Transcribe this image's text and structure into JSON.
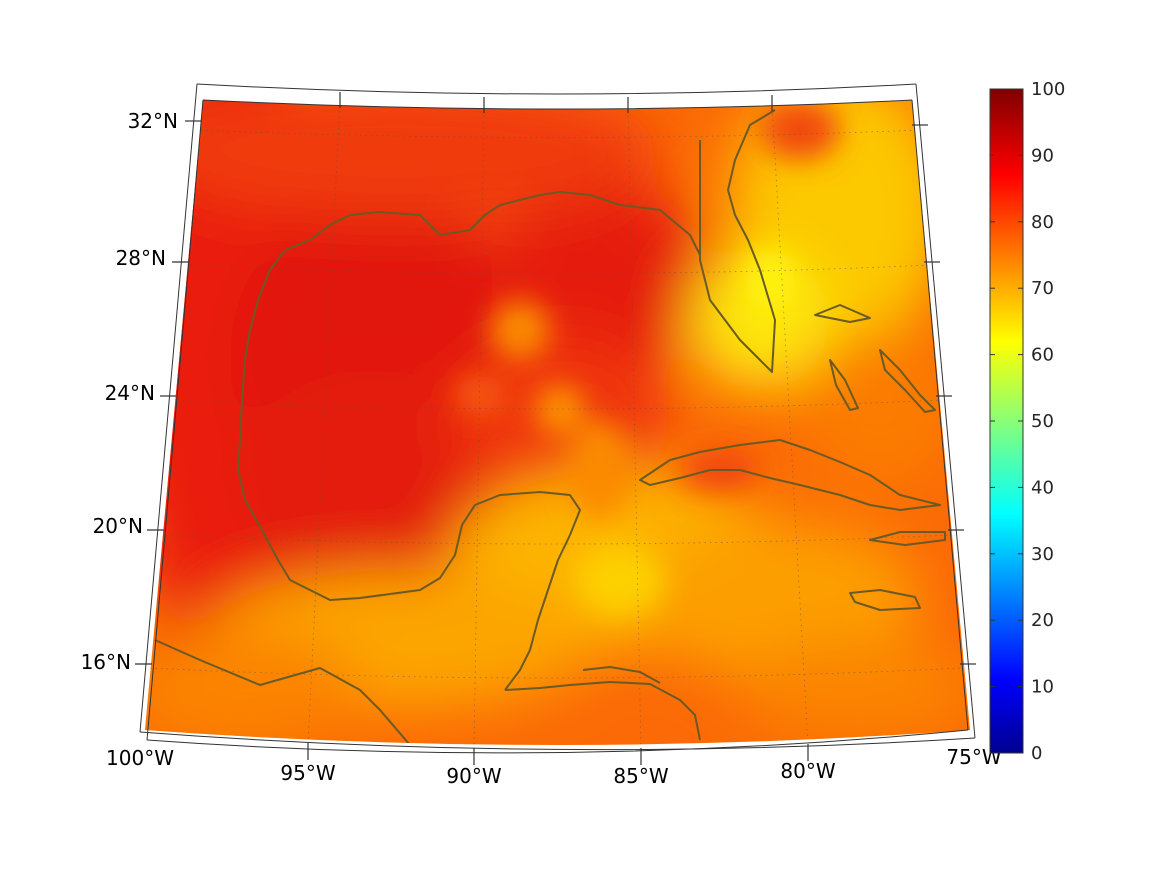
{
  "map": {
    "projection": "conic",
    "extent": {
      "lon": [
        -100,
        -75
      ],
      "lat": [
        14,
        33
      ]
    },
    "latitude_labels": [
      "32°N",
      "28°N",
      "24°N",
      "20°N",
      "16°N"
    ],
    "longitude_labels": [
      "100°W",
      "95°W",
      "90°W",
      "85°W",
      "80°W",
      "75°W"
    ],
    "coastline_color": "#6b5a24",
    "grid": "dotted"
  },
  "colorbar": {
    "ticks": [
      "100",
      "90",
      "80",
      "70",
      "60",
      "50",
      "40",
      "30",
      "20",
      "10",
      "0"
    ],
    "range": [
      0,
      100
    ],
    "colormap": "jet"
  },
  "colors": {
    "background": "#ffffff",
    "field_high": "#e41a0e",
    "field_mid": "#fd7e04",
    "field_low": "#fcd405",
    "coast": "#6b5a24"
  }
}
